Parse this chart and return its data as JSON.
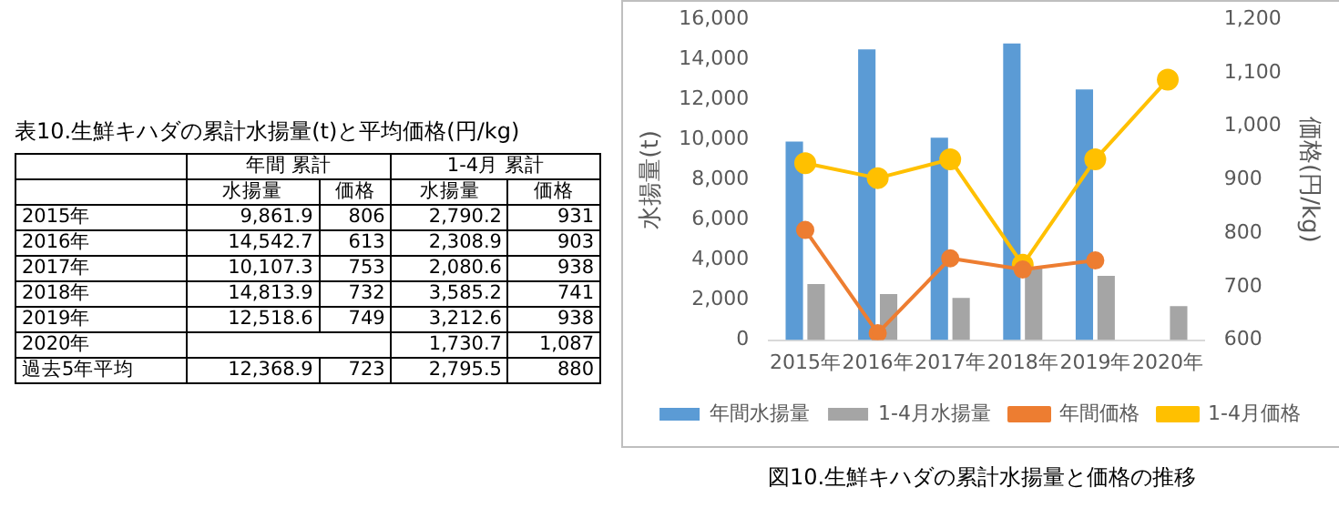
{
  "chart_data": {
    "type": "bar",
    "categories": [
      "2015年",
      "2016年",
      "2017年",
      "2018年",
      "2019年",
      "2020年"
    ],
    "series": [
      {
        "name": "年間水揚量",
        "color": "#5b9bd5",
        "values": [
          9900,
          14500,
          10100,
          14800,
          12500,
          null
        ]
      },
      {
        "name": "1-4月水揚量",
        "color": "#a5a5a5",
        "values": [
          2800,
          2300,
          2100,
          3600,
          3200,
          1700
        ]
      },
      {
        "name": "年間価格",
        "type": "line",
        "axis": "y2",
        "color": "#ed7d31",
        "values": [
          806,
          613,
          753,
          732,
          749,
          null
        ]
      },
      {
        "name": "1-4月価格",
        "type": "line",
        "axis": "y2",
        "color": "#ffc000",
        "values": [
          931,
          903,
          938,
          741,
          938,
          1087
        ]
      }
    ],
    "ylabel": "水揚量(t)",
    "y2label": "価格(円/kg)",
    "ylim": [
      0,
      16000
    ],
    "yticks": [
      {
        "value": 0,
        "label": "0"
      },
      {
        "value": 2000,
        "label": "2,000"
      },
      {
        "value": 4000,
        "label": "4,000"
      },
      {
        "value": 6000,
        "label": "6,000"
      },
      {
        "value": 8000,
        "label": "8,000"
      },
      {
        "value": 10000,
        "label": "10,000"
      },
      {
        "value": 12000,
        "label": "12,000"
      },
      {
        "value": 14000,
        "label": "14,000"
      },
      {
        "value": 16000,
        "label": "16,000"
      }
    ],
    "y2lim": [
      600,
      1200
    ],
    "y2ticks": [
      600,
      700,
      800,
      900,
      {
        "value": 1000,
        "label": "1,000"
      },
      {
        "value": 1100,
        "label": "1,100"
      },
      {
        "value": 1200,
        "label": "1,200"
      }
    ],
    "marker": "circle",
    "legend": "bottom",
    "annotations": [
      "表10.生鮮キハダの累計水揚量(t)と平均価格(円/kg)",
      "年間 累計",
      "1-4月 累計",
      "水揚量",
      "価格",
      "水揚量",
      "価格",
      "9,861.9",
      "806",
      "2,790.2",
      "931",
      "14,542.7",
      "613",
      "2,308.9",
      "903",
      "10,107.3",
      "753",
      "2,080.6",
      "938",
      "14,813.9",
      "732",
      "3,585.2",
      "741",
      "12,518.6",
      "749",
      "3,212.6",
      "938",
      "1,730.7",
      "1,087",
      "過去5年平均",
      "12,368.9",
      "723",
      "2,795.5",
      "880",
      "図10.生鮮キハダの累計水揚量と価格の推移"
    ]
  }
}
